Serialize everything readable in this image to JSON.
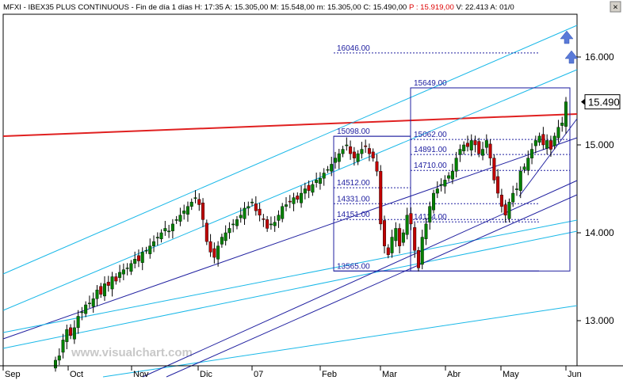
{
  "window": {
    "header": "MFXI - IBEX35 PLUS CONTINUOUS - Fin de día 1 días H: 17:35  A: 15.305,00  M: 15.548,00  m: 15.305,00  C: 15.490,00  P : 15.919,00  V: 22.413  A: 01/0",
    "header_segments": [
      {
        "text": "MFXI - IBEX35 PLUS CONTINUOUS - Fin de día 1 días H: 17:35  A: 15.305,00  M: 15.548,00  m: 15.305,00  C: 15.490,00  ",
        "color": "#000000"
      },
      {
        "text": "P : 15.919,00",
        "color": "#dd0000"
      },
      {
        "text": "  V: 22.413  A: 01/0",
        "color": "#000000"
      }
    ],
    "close_label": "×",
    "watermark": "www.visualchart.com"
  },
  "chart_data": {
    "type": "candlestick",
    "title": "MFXI - IBEX35 PLUS CONTINUOUS",
    "x_ticks": [
      "Sep",
      "Oct",
      "Nov",
      "Dic",
      "07",
      "Feb",
      "Mar",
      "Abr",
      "May",
      "Jun"
    ],
    "y_ticks": [
      "13.000",
      "14.000",
      "15.000",
      "16.000"
    ],
    "ylim": [
      12.5,
      16.62
    ],
    "last_price_label": "15.490",
    "last_price": 15.49,
    "fib_levels": [
      {
        "label": "16046.00",
        "value": 16.046
      },
      {
        "label": "15649.00",
        "value": 15.649
      },
      {
        "label": "15098.00",
        "value": 15.098
      },
      {
        "label": "15062.00",
        "value": 15.062
      },
      {
        "label": "14891.00",
        "value": 14.891
      },
      {
        "label": "14710.00",
        "value": 14.71
      },
      {
        "label": "14512.00",
        "value": 14.512
      },
      {
        "label": "14331.00",
        "value": 14.331
      },
      {
        "label": "14151.00",
        "value": 14.151
      },
      {
        "label": "14124.00",
        "value": 14.124
      },
      {
        "label": "13565.00",
        "value": 13.565
      }
    ],
    "closes": [
      12.55,
      12.6,
      12.78,
      12.9,
      12.83,
      12.92,
      13.05,
      13.1,
      13.18,
      13.2,
      13.25,
      13.35,
      13.3,
      13.42,
      13.4,
      13.5,
      13.45,
      13.55,
      13.58,
      13.6,
      13.65,
      13.7,
      13.68,
      13.78,
      13.8,
      13.85,
      13.9,
      13.95,
      14.0,
      14.05,
      14.02,
      14.1,
      14.15,
      14.2,
      14.25,
      14.3,
      14.35,
      14.4,
      14.32,
      14.15,
      13.9,
      13.78,
      13.72,
      13.85,
      13.95,
      14.0,
      14.05,
      14.1,
      14.15,
      14.2,
      14.28,
      14.3,
      14.35,
      14.25,
      14.2,
      14.15,
      14.05,
      14.1,
      14.12,
      14.2,
      14.3,
      14.32,
      14.35,
      14.4,
      14.38,
      14.45,
      14.5,
      14.48,
      14.55,
      14.6,
      14.62,
      14.68,
      14.72,
      14.78,
      14.85,
      14.9,
      14.95,
      15.0,
      14.9,
      14.85,
      14.9,
      14.95,
      14.98,
      14.9,
      14.85,
      14.7,
      14.1,
      13.85,
      13.75,
      13.95,
      14.05,
      13.85,
      14.0,
      14.2,
      14.1,
      13.8,
      13.6,
      13.95,
      14.1,
      14.3,
      14.45,
      14.5,
      14.55,
      14.6,
      14.65,
      14.7,
      14.85,
      14.95,
      15.0,
      14.98,
      15.05,
      15.0,
      14.9,
      14.95,
      15.05,
      14.85,
      14.6,
      14.45,
      14.3,
      14.2,
      14.35,
      14.45,
      14.5,
      14.7,
      14.75,
      14.85,
      14.95,
      15.05,
      15.1,
      15.0,
      15.05,
      14.95,
      15.1,
      15.2,
      15.25,
      15.49
    ]
  }
}
